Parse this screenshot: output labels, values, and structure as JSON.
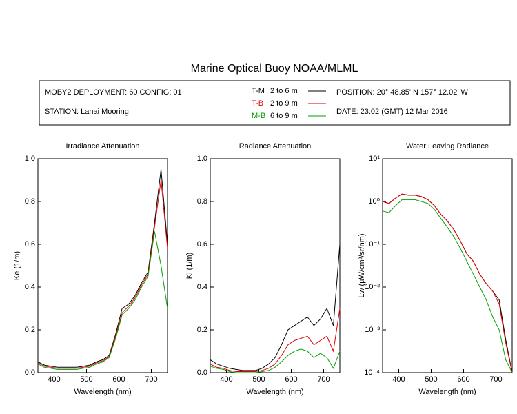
{
  "title": "Marine Optical Buoy NOAA/MLML",
  "info": {
    "deployment": "MOBY2 DEPLOYMENT: 60 CONFIG: 01",
    "station": "STATION: Lanai Mooring",
    "position": "POSITION: 20° 48.85' N   157° 12.02' W",
    "date": "DATE: 23:02 (GMT) 12 Mar 2016"
  },
  "legend": [
    {
      "name": "T-M",
      "range": "2 to 6  m",
      "color": "#000000"
    },
    {
      "name": "T-B",
      "range": "2 to 9  m",
      "color": "#e00000"
    },
    {
      "name": "M-B",
      "range": "6 to 9  m",
      "color": "#00a000"
    }
  ],
  "chart_data": [
    {
      "type": "line",
      "title": "Irradiance Attenuation",
      "xlabel": "Wavelength (nm)",
      "ylabel": "Ke  (1/m)",
      "x": [
        350,
        370,
        390,
        410,
        430,
        450,
        470,
        490,
        510,
        530,
        550,
        570,
        590,
        610,
        630,
        650,
        670,
        690,
        710,
        730,
        750
      ],
      "xlim": [
        350,
        750
      ],
      "xticks": [
        400,
        500,
        600,
        700
      ],
      "ylim": [
        0,
        1
      ],
      "yticks": [
        {
          "value": 0,
          "label": "0.0"
        },
        0.2,
        0.4,
        0.6,
        0.8,
        {
          "value": 1,
          "label": "1.0"
        }
      ],
      "series": [
        {
          "color": "#000000",
          "values": [
            0.05,
            0.035,
            0.03,
            0.025,
            0.025,
            0.025,
            0.025,
            0.03,
            0.035,
            0.05,
            0.06,
            0.08,
            0.18,
            0.3,
            0.32,
            0.36,
            0.42,
            0.47,
            0.7,
            0.95,
            0.6
          ]
        },
        {
          "color": "#e00000",
          "values": [
            0.045,
            0.03,
            0.025,
            0.02,
            0.02,
            0.02,
            0.02,
            0.025,
            0.03,
            0.045,
            0.055,
            0.075,
            0.17,
            0.28,
            0.31,
            0.35,
            0.41,
            0.46,
            0.68,
            0.9,
            0.58
          ]
        },
        {
          "color": "#00a000",
          "values": [
            0.04,
            0.025,
            0.02,
            0.015,
            0.015,
            0.015,
            0.015,
            0.02,
            0.025,
            0.04,
            0.05,
            0.07,
            0.16,
            0.27,
            0.3,
            0.34,
            0.4,
            0.45,
            0.66,
            0.5,
            0.3
          ]
        }
      ]
    },
    {
      "type": "line",
      "title": "Radiance Attenuation",
      "xlabel": "Wavelength (nm)",
      "ylabel": "Kl  (1/m)",
      "x": [
        350,
        370,
        390,
        410,
        430,
        450,
        470,
        490,
        510,
        530,
        550,
        570,
        590,
        610,
        630,
        650,
        670,
        690,
        710,
        730,
        750
      ],
      "xlim": [
        350,
        750
      ],
      "xticks": [
        400,
        500,
        600,
        700
      ],
      "ylim": [
        0,
        1
      ],
      "yticks": [
        {
          "value": 0,
          "label": "0.0"
        },
        0.2,
        0.4,
        0.6,
        0.8,
        {
          "value": 1,
          "label": "1.0"
        }
      ],
      "series": [
        {
          "color": "#000000",
          "values": [
            0.06,
            0.04,
            0.03,
            0.02,
            0.015,
            0.01,
            0.01,
            0.01,
            0.02,
            0.04,
            0.07,
            0.13,
            0.2,
            0.22,
            0.24,
            0.26,
            0.22,
            0.25,
            0.3,
            0.22,
            0.6
          ]
        },
        {
          "color": "#e00000",
          "values": [
            0.04,
            0.025,
            0.02,
            0.01,
            0.005,
            0.005,
            0.005,
            0.005,
            0.01,
            0.02,
            0.04,
            0.08,
            0.13,
            0.15,
            0.16,
            0.17,
            0.13,
            0.15,
            0.17,
            0.1,
            0.3
          ]
        },
        {
          "color": "#00a000",
          "values": [
            0.03,
            0.02,
            0.015,
            0.005,
            0,
            0,
            0,
            0,
            0.005,
            0.01,
            0.025,
            0.05,
            0.08,
            0.1,
            0.11,
            0.1,
            0.07,
            0.09,
            0.07,
            0.02,
            0.1
          ]
        }
      ]
    },
    {
      "type": "line",
      "title": "Water Leaving Radiance",
      "xlabel": "Wavelength (nm)",
      "ylabel": "Lw  (µW/cm²/sr/nm)",
      "log_y": true,
      "x": [
        350,
        370,
        390,
        410,
        430,
        450,
        470,
        490,
        510,
        530,
        550,
        570,
        590,
        610,
        630,
        650,
        670,
        690,
        710,
        730,
        750
      ],
      "xlim": [
        350,
        750
      ],
      "xticks": [
        400,
        500,
        600,
        700
      ],
      "ylim": [
        0.0001,
        10
      ],
      "yticks": [
        {
          "value": 0.0001,
          "label": "10⁻⁴"
        },
        {
          "value": 0.001,
          "label": "10⁻³"
        },
        {
          "value": 0.01,
          "label": "10⁻²"
        },
        {
          "value": 0.1,
          "label": "10⁻¹"
        },
        {
          "value": 1,
          "label": "10⁰"
        },
        {
          "value": 10,
          "label": "10¹"
        }
      ],
      "series": [
        {
          "color": "#000000",
          "values": [
            1.0,
            0.9,
            1.2,
            1.5,
            1.4,
            1.4,
            1.3,
            1.1,
            0.8,
            0.5,
            0.35,
            0.22,
            0.12,
            0.06,
            0.04,
            0.02,
            0.012,
            0.008,
            0.005,
            0.0006,
            0.0001
          ]
        },
        {
          "color": "#e00000",
          "values": [
            1.0,
            0.9,
            1.2,
            1.5,
            1.4,
            1.4,
            1.3,
            1.1,
            0.8,
            0.5,
            0.35,
            0.22,
            0.12,
            0.06,
            0.04,
            0.02,
            0.012,
            0.008,
            0.004,
            0.0005,
            0.0001
          ]
        },
        {
          "color": "#00a000",
          "values": [
            0.6,
            0.55,
            0.8,
            1.1,
            1.1,
            1.1,
            1.0,
            0.9,
            0.65,
            0.4,
            0.25,
            0.15,
            0.08,
            0.04,
            0.02,
            0.01,
            0.005,
            0.002,
            0.001,
            0.0002,
            0.0001
          ]
        }
      ]
    }
  ]
}
